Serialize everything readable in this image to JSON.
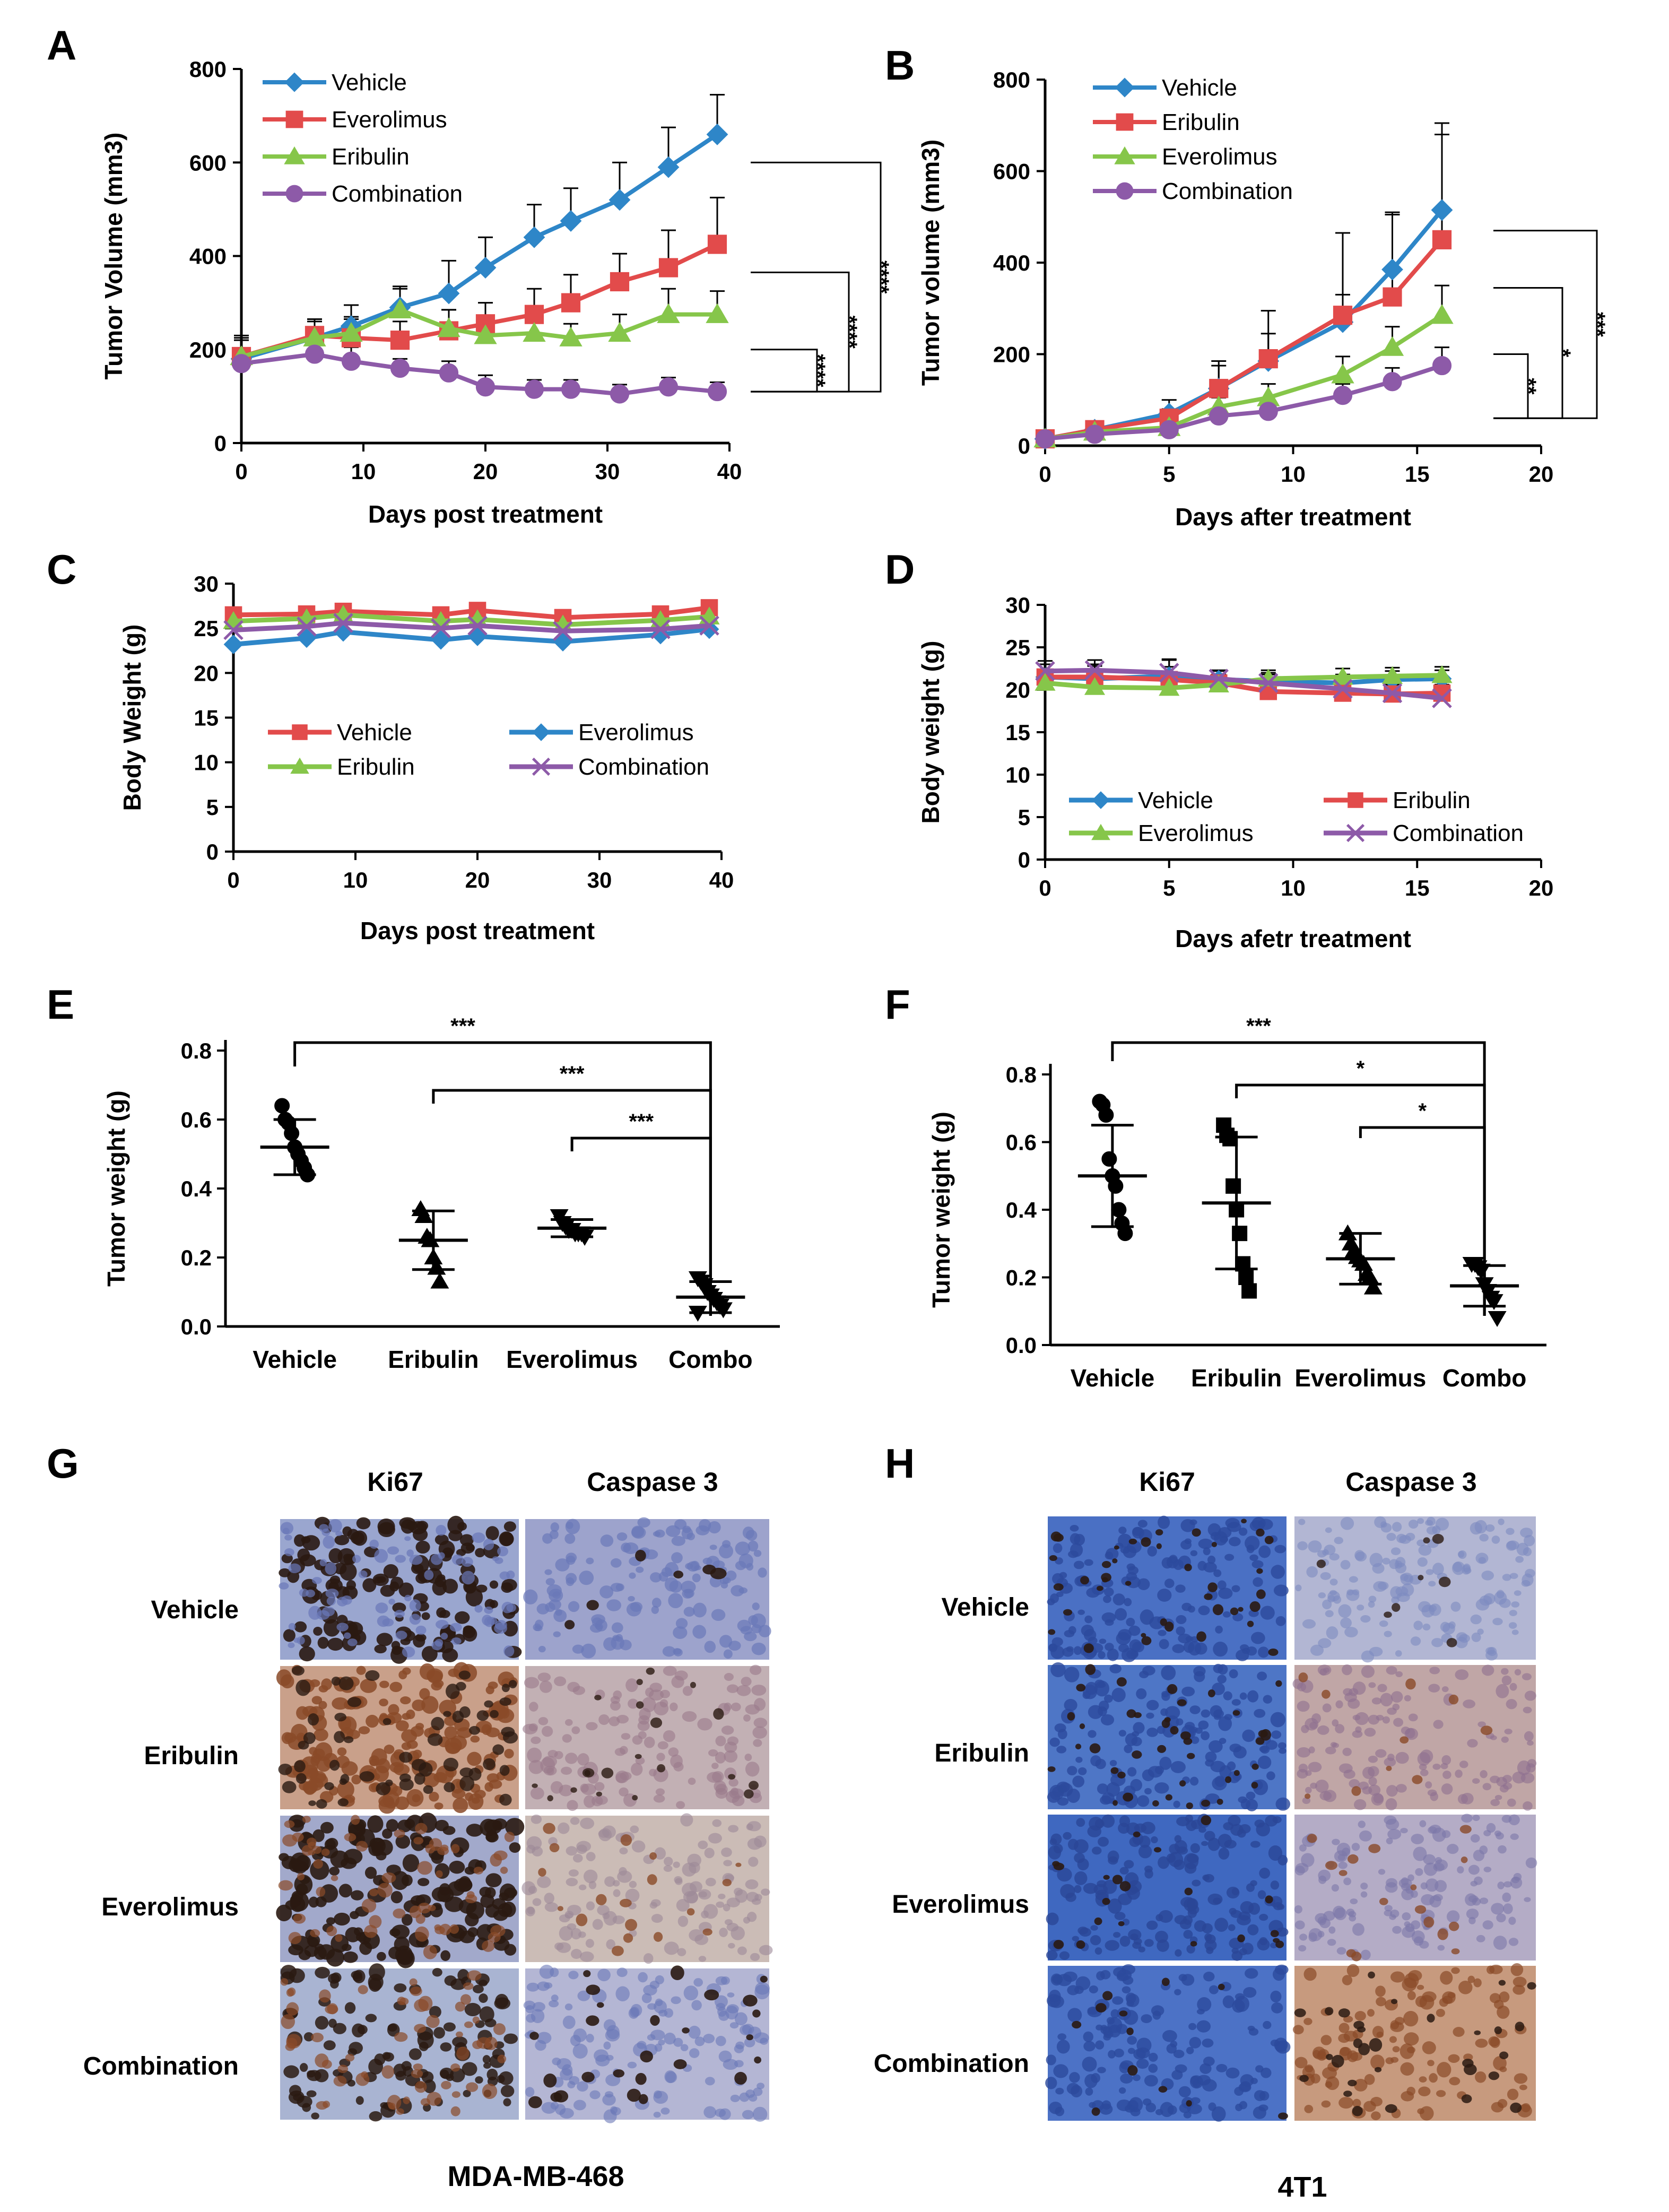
{
  "colors": {
    "vehicle": "#2e86c8",
    "everolimus": "#e24b4b",
    "eribulin": "#86c64a",
    "combination": "#8d5aa8",
    "dark_stain": "#2a1a12",
    "brown_stain": "#8a4a28",
    "hematoxylin": "#6a78b8",
    "blue_bg": "#3f68c0"
  },
  "chart_data": [
    {
      "id": "A",
      "panel_label": "A",
      "type": "line",
      "xlabel": "Days post treatment",
      "ylabel": "Tumor Volume (mm3)",
      "xlim": [
        0,
        40
      ],
      "ylim": [
        0,
        800
      ],
      "xticks": [
        "0",
        "10",
        "20",
        "30",
        "40"
      ],
      "yticks": [
        "0",
        "200",
        "400",
        "600",
        "800"
      ],
      "legend": "top-left",
      "series": [
        {
          "name": "Vehicle",
          "color": "#2e86c8",
          "marker": "diamond",
          "x": [
            0,
            6,
            9,
            13,
            17,
            20,
            24,
            27,
            31,
            35,
            39
          ],
          "y": [
            180,
            225,
            250,
            290,
            320,
            375,
            440,
            475,
            520,
            590,
            660
          ],
          "err": [
            50,
            40,
            45,
            45,
            70,
            65,
            70,
            70,
            80,
            85,
            85
          ]
        },
        {
          "name": "Everolimus",
          "color": "#e24b4b",
          "marker": "square",
          "x": [
            0,
            6,
            9,
            13,
            17,
            20,
            24,
            27,
            31,
            35,
            39
          ],
          "y": [
            185,
            230,
            225,
            220,
            240,
            255,
            275,
            300,
            345,
            375,
            425
          ],
          "err": [
            40,
            35,
            40,
            40,
            45,
            45,
            55,
            60,
            60,
            80,
            100
          ]
        },
        {
          "name": "Eribulin",
          "color": "#86c64a",
          "marker": "triangle",
          "x": [
            0,
            6,
            9,
            13,
            17,
            20,
            24,
            27,
            31,
            35,
            39
          ],
          "y": [
            185,
            225,
            235,
            285,
            245,
            230,
            235,
            225,
            235,
            275,
            275
          ],
          "err": [
            35,
            35,
            35,
            45,
            40,
            35,
            40,
            30,
            40,
            55,
            50
          ]
        },
        {
          "name": "Combination",
          "color": "#8d5aa8",
          "marker": "circle",
          "x": [
            0,
            6,
            9,
            13,
            17,
            20,
            24,
            27,
            31,
            35,
            39
          ],
          "y": [
            170,
            190,
            175,
            160,
            150,
            120,
            115,
            115,
            105,
            120,
            110
          ],
          "err": [
            25,
            25,
            30,
            20,
            25,
            25,
            20,
            20,
            20,
            20,
            20
          ]
        }
      ],
      "significance": [
        {
          "label": "****",
          "y1": 110,
          "y2": 200
        },
        {
          "label": "****",
          "y1": 110,
          "y2": 365
        },
        {
          "label": "****",
          "y1": 110,
          "y2": 600
        }
      ]
    },
    {
      "id": "B",
      "panel_label": "B",
      "type": "line",
      "xlabel": "Days after treatment",
      "ylabel": "Tumor volume (mm3)",
      "xlim": [
        0,
        20
      ],
      "ylim": [
        0,
        800
      ],
      "xticks": [
        "0",
        "5",
        "10",
        "15",
        "20"
      ],
      "yticks": [
        "0",
        "200",
        "400",
        "600",
        "800"
      ],
      "legend": "top-left",
      "series": [
        {
          "name": "Vehicle",
          "color": "#2e86c8",
          "marker": "diamond",
          "x": [
            0,
            2,
            5,
            7,
            9,
            12,
            14,
            16
          ],
          "y": [
            15,
            35,
            70,
            125,
            185,
            270,
            385,
            515
          ],
          "err": [
            10,
            15,
            30,
            50,
            60,
            60,
            125,
            190
          ]
        },
        {
          "name": "Eribulin",
          "color": "#e24b4b",
          "marker": "square",
          "x": [
            0,
            2,
            5,
            7,
            9,
            12,
            14,
            16
          ],
          "y": [
            15,
            35,
            60,
            125,
            190,
            285,
            325,
            450
          ],
          "err": [
            10,
            15,
            20,
            60,
            105,
            180,
            180,
            230
          ]
        },
        {
          "name": "Everolimus",
          "color": "#86c64a",
          "marker": "triangle",
          "x": [
            0,
            2,
            5,
            7,
            9,
            12,
            14,
            16
          ],
          "y": [
            15,
            30,
            40,
            85,
            105,
            155,
            215,
            285
          ],
          "err": [
            10,
            10,
            10,
            20,
            30,
            40,
            45,
            65
          ]
        },
        {
          "name": "Combination",
          "color": "#8d5aa8",
          "marker": "circle",
          "x": [
            0,
            2,
            5,
            7,
            9,
            12,
            14,
            16
          ],
          "y": [
            15,
            25,
            35,
            65,
            75,
            110,
            140,
            175
          ],
          "err": [
            10,
            10,
            10,
            15,
            15,
            25,
            30,
            40
          ]
        }
      ],
      "significance": [
        {
          "label": "**",
          "y1": 60,
          "y2": 200
        },
        {
          "label": "*",
          "y1": 60,
          "y2": 345
        },
        {
          "label": "***",
          "y1": 60,
          "y2": 470
        }
      ]
    },
    {
      "id": "C",
      "panel_label": "C",
      "type": "line",
      "xlabel": "Days post treatment",
      "ylabel": "Body Weight (g)",
      "xlim": [
        0,
        40
      ],
      "ylim": [
        0,
        30
      ],
      "xticks": [
        "0",
        "10",
        "20",
        "30",
        "40"
      ],
      "yticks": [
        "0",
        "5",
        "10",
        "15",
        "20",
        "25",
        "30"
      ],
      "legend": "bottom",
      "series": [
        {
          "name": "Vehicle",
          "color": "#e24b4b",
          "marker": "square",
          "x": [
            0,
            6,
            9,
            17,
            20,
            27,
            35,
            39
          ],
          "y": [
            26.5,
            26.6,
            26.9,
            26.5,
            27.0,
            26.2,
            26.6,
            27.3
          ]
        },
        {
          "name": "Everolimus",
          "color": "#2e86c8",
          "marker": "diamond",
          "x": [
            0,
            6,
            9,
            17,
            20,
            27,
            35,
            39
          ],
          "y": [
            23.2,
            23.9,
            24.6,
            23.7,
            24.1,
            23.5,
            24.3,
            24.9
          ]
        },
        {
          "name": "Eribulin",
          "color": "#86c64a",
          "marker": "triangle",
          "x": [
            0,
            6,
            9,
            17,
            20,
            27,
            35,
            39
          ],
          "y": [
            25.8,
            26.1,
            26.5,
            25.8,
            26.0,
            25.4,
            25.9,
            26.3
          ]
        },
        {
          "name": "Combination",
          "color": "#8d5aa8",
          "marker": "cross",
          "x": [
            0,
            6,
            9,
            17,
            20,
            27,
            35,
            39
          ],
          "y": [
            24.8,
            25.2,
            25.6,
            25.0,
            25.3,
            24.7,
            24.9,
            25.3
          ]
        }
      ]
    },
    {
      "id": "D",
      "panel_label": "D",
      "type": "line",
      "xlabel": "Days afetr treatment",
      "ylabel": "Body weight (g)",
      "xlim": [
        0,
        20
      ],
      "ylim": [
        0,
        30
      ],
      "xticks": [
        "0",
        "5",
        "10",
        "15",
        "20"
      ],
      "yticks": [
        "0",
        "5",
        "10",
        "15",
        "20",
        "25",
        "30"
      ],
      "legend": "bottom",
      "series": [
        {
          "name": "Vehicle",
          "color": "#2e86c8",
          "marker": "diamond",
          "x": [
            0,
            2,
            5,
            7,
            9,
            12,
            14,
            16
          ],
          "y": [
            21.5,
            21.3,
            21.6,
            21.2,
            21.0,
            20.8,
            21.2,
            21.3
          ],
          "err": [
            1.5,
            1.5,
            2,
            1,
            1,
            1,
            1,
            1
          ]
        },
        {
          "name": "Eribulin",
          "color": "#e24b4b",
          "marker": "square",
          "x": [
            0,
            2,
            5,
            7,
            9,
            12,
            14,
            16
          ],
          "y": [
            21.5,
            21.5,
            21.2,
            20.8,
            19.8,
            19.6,
            19.5,
            19.6
          ],
          "err": [
            1.5,
            1.5,
            1.5,
            1,
            1,
            1,
            1,
            1
          ]
        },
        {
          "name": "Everolimus",
          "color": "#86c64a",
          "marker": "triangle",
          "x": [
            0,
            2,
            5,
            7,
            9,
            12,
            14,
            16
          ],
          "y": [
            20.8,
            20.3,
            20.2,
            20.6,
            21.3,
            21.5,
            21.6,
            21.7
          ],
          "err": [
            1,
            1,
            1,
            1,
            1,
            1,
            1,
            1
          ]
        },
        {
          "name": "Combination",
          "color": "#8d5aa8",
          "marker": "cross",
          "x": [
            0,
            2,
            5,
            7,
            9,
            12,
            14,
            16
          ],
          "y": [
            22.2,
            22.3,
            22.0,
            21.3,
            20.8,
            20.1,
            19.6,
            19.0
          ],
          "err": [
            1.2,
            1.2,
            1.5,
            1,
            1,
            1,
            1,
            1
          ]
        }
      ]
    },
    {
      "id": "E",
      "panel_label": "E",
      "type": "scatter",
      "xlabel": "",
      "ylabel": "Tumor weight (g)",
      "ylim": [
        0,
        0.8
      ],
      "yticks": [
        "0.0",
        "0.2",
        "0.4",
        "0.6",
        "0.8"
      ],
      "categories": [
        "Vehicle",
        "Eribulin",
        "Everolimus",
        "Combo"
      ],
      "groups": [
        {
          "name": "Vehicle",
          "marker": "circle",
          "mean": 0.52,
          "sd": 0.08,
          "points": [
            0.64,
            0.6,
            0.59,
            0.56,
            0.52,
            0.5,
            0.48,
            0.46,
            0.44
          ]
        },
        {
          "name": "Eribulin",
          "marker": "triangle",
          "mean": 0.25,
          "sd": 0.085,
          "points": [
            0.34,
            0.32,
            0.26,
            0.25,
            0.2,
            0.17,
            0.13
          ]
        },
        {
          "name": "Everolimus",
          "marker": "triangle-down",
          "mean": 0.285,
          "sd": 0.025,
          "points": [
            0.32,
            0.3,
            0.29,
            0.28,
            0.28,
            0.27,
            0.27,
            0.27,
            0.26
          ]
        },
        {
          "name": "Combo",
          "marker": "triangle-down",
          "mean": 0.085,
          "sd": 0.045,
          "points": [
            0.14,
            0.13,
            0.12,
            0.1,
            0.09,
            0.08,
            0.07,
            0.06,
            0.05,
            0.04
          ]
        }
      ],
      "significance": [
        {
          "label": "***",
          "from": 0,
          "to": 3
        },
        {
          "label": "***",
          "from": 1,
          "to": 3
        },
        {
          "label": "***",
          "from": 2,
          "to": 3
        }
      ]
    },
    {
      "id": "F",
      "panel_label": "F",
      "type": "scatter",
      "xlabel": "",
      "ylabel": "Tumor weight (g)",
      "ylim": [
        0,
        0.8
      ],
      "yticks": [
        "0.0",
        "0.2",
        "0.4",
        "0.6",
        "0.8"
      ],
      "categories": [
        "Vehicle",
        "Eribulin",
        "Everolimus",
        "Combo"
      ],
      "groups": [
        {
          "name": "Vehicle",
          "marker": "circle",
          "mean": 0.5,
          "sd": 0.15,
          "points": [
            0.72,
            0.71,
            0.68,
            0.55,
            0.5,
            0.47,
            0.4,
            0.36,
            0.33
          ]
        },
        {
          "name": "Eribulin",
          "marker": "square",
          "mean": 0.42,
          "sd": 0.195,
          "points": [
            0.65,
            0.62,
            0.61,
            0.47,
            0.4,
            0.33,
            0.24,
            0.2,
            0.16
          ]
        },
        {
          "name": "Everolimus",
          "marker": "triangle",
          "mean": 0.255,
          "sd": 0.075,
          "points": [
            0.33,
            0.3,
            0.28,
            0.26,
            0.25,
            0.24,
            0.21,
            0.2,
            0.17
          ]
        },
        {
          "name": "Combo",
          "marker": "triangle-down",
          "mean": 0.175,
          "sd": 0.06,
          "points": [
            0.24,
            0.24,
            0.23,
            0.22,
            0.18,
            0.16,
            0.14,
            0.13,
            0.08
          ]
        }
      ],
      "significance": [
        {
          "label": "***",
          "from": 0,
          "to": 3
        },
        {
          "label": "*",
          "from": 1,
          "to": 3
        },
        {
          "label": "*",
          "from": 2,
          "to": 3
        }
      ]
    }
  ],
  "ihc": [
    {
      "panel_label": "G",
      "cell_line": "MDA-MB-468",
      "columns": [
        "Ki67",
        "Caspase 3"
      ],
      "rows": [
        "Vehicle",
        "Eribulin",
        "Everolimus",
        "Combination"
      ]
    },
    {
      "panel_label": "H",
      "cell_line": "4T1",
      "columns": [
        "Ki67",
        "Caspase 3"
      ],
      "rows": [
        "Vehicle",
        "Eribulin",
        "Everolimus",
        "Combination"
      ]
    }
  ]
}
